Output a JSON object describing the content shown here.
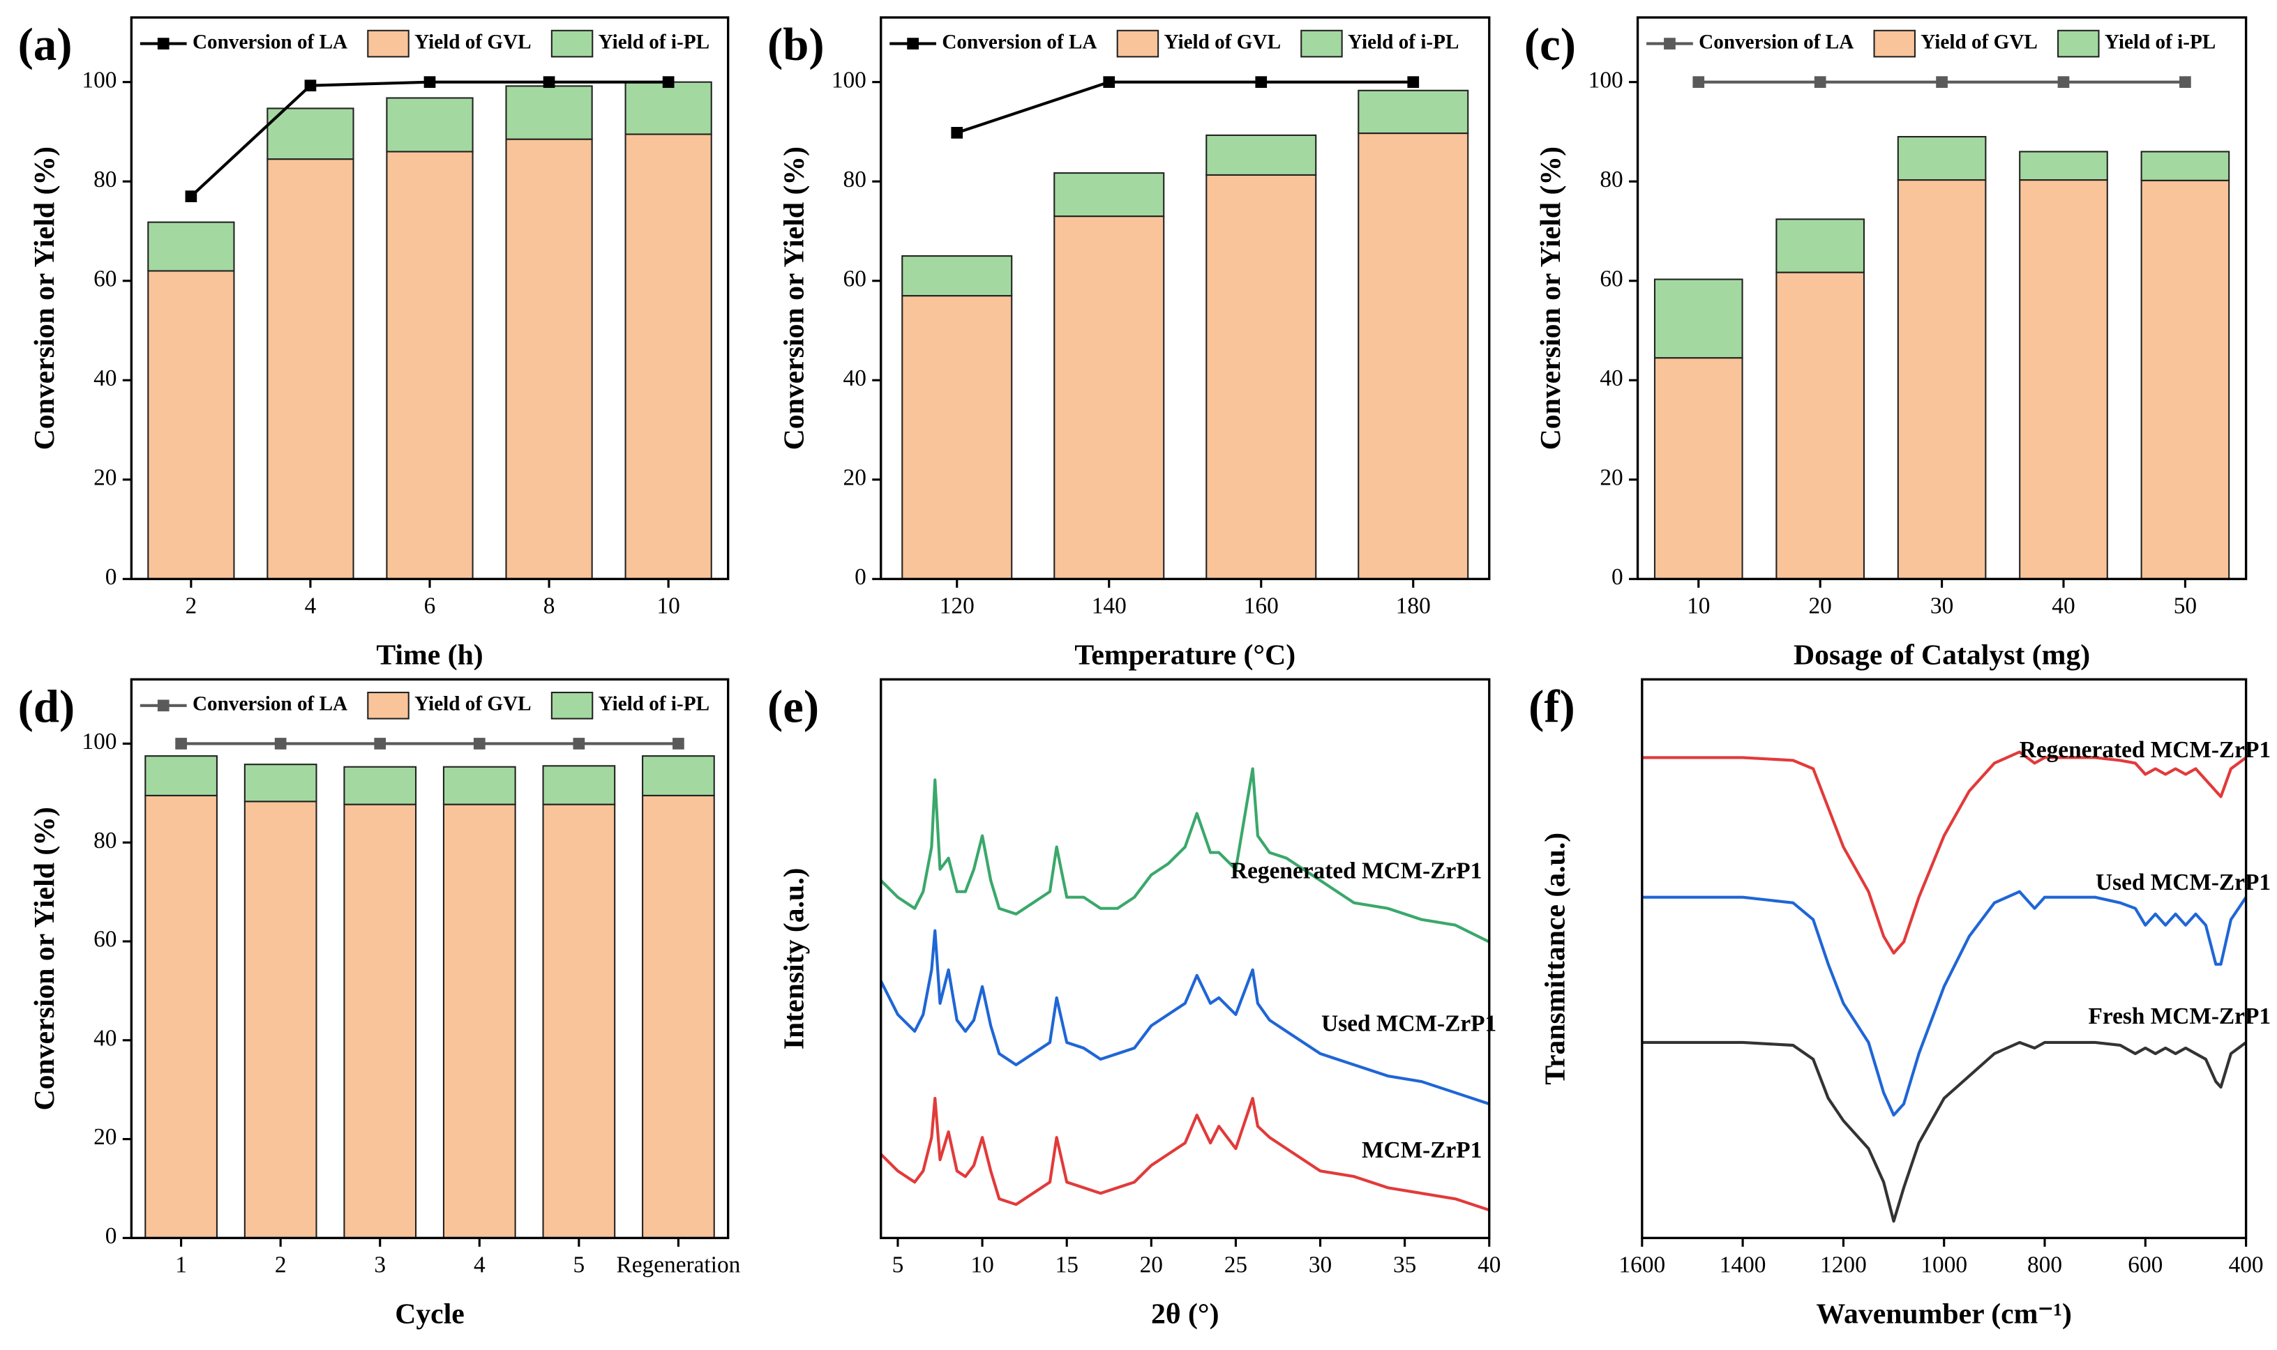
{
  "chart_data": [
    {
      "type": "bar",
      "label": "(a)",
      "x_label": "Time (h)",
      "y_label": "Conversion or Yield (%)",
      "categories": [
        "2",
        "4",
        "6",
        "8",
        "10"
      ],
      "series": [
        {
          "name": "Conversion of LA",
          "type": "line",
          "color": "#000000",
          "values": [
            77,
            99.3,
            100,
            100,
            100
          ]
        },
        {
          "name": "Yield of GVL",
          "type": "bar",
          "color": "#f9c49a",
          "values": [
            62,
            84.5,
            86,
            88.5,
            89.5
          ]
        },
        {
          "name": "Yield of i-PL",
          "type": "bar",
          "color": "#a3d9a0",
          "values": [
            9.8,
            10.2,
            10.8,
            10.7,
            10.5
          ]
        }
      ],
      "ylim": [
        0,
        113
      ],
      "yticks": [
        0,
        20,
        40,
        60,
        80,
        100
      ]
    },
    {
      "type": "bar",
      "label": "(b)",
      "x_label": "Temperature (°C)",
      "y_label": "Conversion or Yield (%)",
      "categories": [
        "120",
        "140",
        "160",
        "180"
      ],
      "series": [
        {
          "name": "Conversion of LA",
          "type": "line",
          "color": "#000000",
          "values": [
            89.8,
            100,
            100,
            100
          ]
        },
        {
          "name": "Yield of GVL",
          "type": "bar",
          "color": "#f9c49a",
          "values": [
            57,
            73,
            81.3,
            89.7
          ]
        },
        {
          "name": "Yield of i-PL",
          "type": "bar",
          "color": "#a3d9a0",
          "values": [
            8,
            8.7,
            8,
            8.6
          ]
        }
      ],
      "ylim": [
        0,
        113
      ],
      "yticks": [
        0,
        20,
        40,
        60,
        80,
        100
      ]
    },
    {
      "type": "bar",
      "label": "(c)",
      "x_label": "Dosage of Catalyst (mg)",
      "y_label": "Conversion or Yield (%)",
      "categories": [
        "10",
        "20",
        "30",
        "40",
        "50"
      ],
      "series": [
        {
          "name": "Conversion of LA",
          "type": "line",
          "color": "#5a5a5a",
          "values": [
            100,
            100,
            100,
            100,
            100
          ]
        },
        {
          "name": "Yield of GVL",
          "type": "bar",
          "color": "#f9c49a",
          "values": [
            44.5,
            61.7,
            80.3,
            80.3,
            80.2
          ]
        },
        {
          "name": "Yield of i-PL",
          "type": "bar",
          "color": "#a3d9a0",
          "values": [
            15.8,
            10.7,
            8.7,
            5.7,
            5.8
          ]
        }
      ],
      "ylim": [
        0,
        113
      ],
      "yticks": [
        0,
        20,
        40,
        60,
        80,
        100
      ]
    },
    {
      "type": "bar",
      "label": "(d)",
      "x_label": "Cycle",
      "y_label": "Conversion or Yield (%)",
      "categories": [
        "1",
        "2",
        "3",
        "4",
        "5",
        "Regeneration"
      ],
      "series": [
        {
          "name": "Conversion of LA",
          "type": "line",
          "color": "#5a5a5a",
          "values": [
            100,
            100,
            100,
            100,
            100,
            100
          ]
        },
        {
          "name": "Yield of GVL",
          "type": "bar",
          "color": "#f9c49a",
          "values": [
            89.5,
            88.3,
            87.7,
            87.7,
            87.7,
            89.5
          ]
        },
        {
          "name": "Yield of i-PL",
          "type": "bar",
          "color": "#a3d9a0",
          "values": [
            8,
            7.5,
            7.6,
            7.6,
            7.8,
            8
          ]
        }
      ],
      "ylim": [
        0,
        113
      ],
      "yticks": [
        0,
        20,
        40,
        60,
        80,
        100
      ]
    },
    {
      "type": "line",
      "label": "(e)",
      "x_label": "2θ (°)",
      "y_label": "Intensity (a.u.)",
      "x": [
        4,
        5,
        6,
        6.5,
        7,
        7.2,
        7.5,
        8,
        8.5,
        9,
        9.5,
        10,
        10.5,
        11,
        12,
        13,
        14,
        14.4,
        15,
        16,
        17,
        18,
        19,
        20,
        21,
        22,
        22.7,
        23.5,
        24,
        25,
        26,
        26.3,
        27,
        28,
        30,
        32,
        34,
        36,
        38,
        40
      ],
      "series": [
        {
          "name": "Regenerated MCM-ZrP1",
          "color": "#3aa86b",
          "values": [
            64,
            61,
            59,
            62,
            70,
            82,
            66,
            68,
            62,
            62,
            66,
            72,
            64,
            59,
            58,
            60,
            62,
            70,
            61,
            61,
            59,
            59,
            61,
            65,
            67,
            70,
            76,
            69,
            69,
            66,
            84,
            72,
            69,
            68,
            64,
            60,
            59,
            57,
            56,
            53
          ]
        },
        {
          "name": "Used MCM-ZrP1",
          "color": "#1f66d6",
          "values": [
            46,
            40,
            37,
            40,
            48,
            55,
            42,
            48,
            39,
            37,
            39,
            45,
            38,
            33,
            31,
            33,
            35,
            43,
            35,
            34,
            32,
            33,
            34,
            38,
            40,
            42,
            47,
            42,
            43,
            40,
            48,
            42,
            39,
            37,
            33,
            31,
            29,
            28,
            26,
            24
          ]
        },
        {
          "name": "MCM-ZrP1",
          "color": "#e23a3a",
          "values": [
            15,
            12,
            10,
            12,
            18,
            25,
            14,
            19,
            12,
            11,
            13,
            18,
            12,
            7,
            6,
            8,
            10,
            18,
            10,
            9,
            8,
            9,
            10,
            13,
            15,
            17,
            22,
            17,
            20,
            16,
            25,
            20,
            18,
            16,
            12,
            11,
            9,
            8,
            7,
            5
          ]
        }
      ],
      "xlim": [
        4,
        40
      ],
      "xticks": [
        5,
        10,
        15,
        20,
        25,
        30,
        35,
        40
      ],
      "ylim": [
        0,
        100
      ]
    },
    {
      "type": "line",
      "label": "(f)",
      "x_label": "Wavenumber (cm⁻¹)",
      "y_label": "Transmittance (a.u.)",
      "x": [
        1600,
        1400,
        1300,
        1260,
        1230,
        1200,
        1150,
        1120,
        1100,
        1080,
        1050,
        1000,
        950,
        900,
        850,
        820,
        800,
        750,
        700,
        650,
        620,
        600,
        580,
        560,
        540,
        520,
        500,
        480,
        460,
        450,
        430,
        400
      ],
      "series": [
        {
          "name": "Regenerated MCM-ZrP1",
          "color": "#e23a3a",
          "values": [
            86,
            86,
            85.5,
            84,
            77,
            70,
            62,
            54,
            51,
            53,
            61,
            72,
            80,
            85,
            87,
            85,
            86,
            86,
            86,
            85.5,
            85,
            83,
            84,
            83,
            84,
            83,
            84,
            82,
            80,
            79,
            84,
            86
          ]
        },
        {
          "name": "Used MCM-ZrP1",
          "color": "#1f66d6",
          "values": [
            61,
            61,
            60,
            57,
            49,
            42,
            35,
            26,
            22,
            24,
            33,
            45,
            54,
            60,
            62,
            59,
            61,
            61,
            61,
            60,
            59,
            56,
            58,
            56,
            58,
            56,
            58,
            56,
            49,
            49,
            57,
            61
          ]
        },
        {
          "name": "Fresh MCM-ZrP1",
          "color": "#333333",
          "values": [
            35,
            35,
            34.5,
            32,
            25,
            21,
            16,
            10,
            3,
            9,
            17,
            25,
            29,
            33,
            35,
            34,
            35,
            35,
            35,
            34.5,
            33,
            34,
            33,
            34,
            33,
            34,
            33,
            32,
            28,
            27,
            33,
            35
          ]
        }
      ],
      "xlim": [
        1600,
        400
      ],
      "xticks": [
        1600,
        1400,
        1200,
        1000,
        800,
        600,
        400
      ],
      "ylim": [
        0,
        100
      ]
    }
  ]
}
